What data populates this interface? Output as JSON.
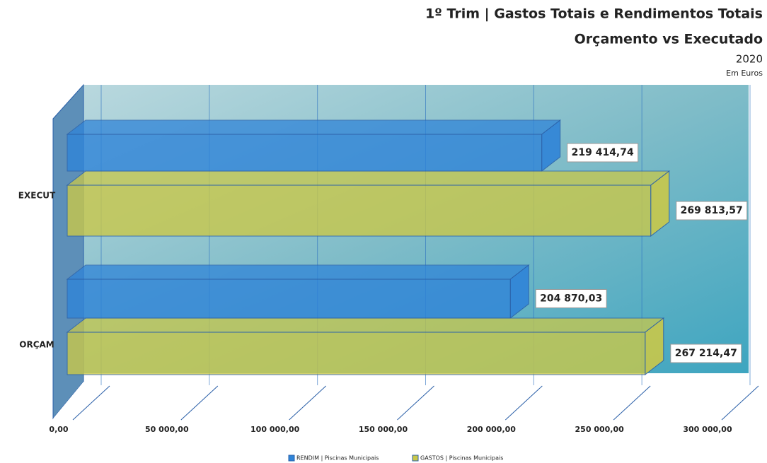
{
  "chart_data": {
    "type": "bar3d",
    "title": "1º Trim | Gastos Totais e Rendimentos Totais",
    "subtitle": "Orçamento vs Executado",
    "annotations": [
      "2020",
      "Em Euros"
    ],
    "orientation": "horizontal",
    "categories": [
      "EXECUT",
      "ORÇAM"
    ],
    "series": [
      {
        "name": "RENDIM | Piscinas Municipais",
        "color": "#2f84d8",
        "values": [
          219414.74,
          204870.03
        ],
        "value_labels": [
          "219 414,74",
          "204 870,03"
        ]
      },
      {
        "name": "GASTOS | Piscinas Municipais",
        "color": "#c9c84a",
        "values": [
          269813.57,
          267214.47
        ],
        "value_labels": [
          "269 813,57",
          "267 214,47"
        ]
      }
    ],
    "xlim": [
      0,
      300000
    ],
    "xticks": [
      {
        "value": 0,
        "label": "0,00"
      },
      {
        "value": 50000,
        "label": "50 000,00"
      },
      {
        "value": 100000,
        "label": "100 000,00"
      },
      {
        "value": 150000,
        "label": "150 000,00"
      },
      {
        "value": 200000,
        "label": "200 000,00"
      },
      {
        "value": 250000,
        "label": "250 000,00"
      },
      {
        "value": 300000,
        "label": "300 000,00"
      }
    ],
    "grid": true
  }
}
